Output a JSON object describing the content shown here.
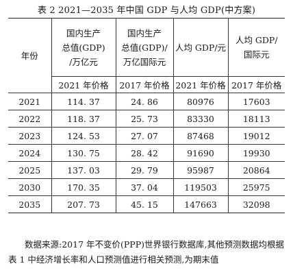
{
  "caption": "表 2   2021—2035 年中国 GDP 与人均 GDP(中方案)",
  "table": {
    "headers": {
      "year": "年份",
      "gdp_cny_line1": "国内生产",
      "gdp_cny_line2": "总值(GDP)",
      "gdp_cny_line3": "/万亿元",
      "gdp_intl_line1": "国内生产",
      "gdp_intl_line2": "总值(GDP)/",
      "gdp_intl_line3": "万亿国际元",
      "pc_cny": "人均 GDP/元",
      "pc_intl_line1": "人均 GDP/",
      "pc_intl_line2": "国际元"
    },
    "subheaders": [
      "2021 年价格",
      "2017 年价格",
      "2021 年价格",
      "2017 年价格"
    ],
    "rows": [
      {
        "year": "2021",
        "gdp_cny": "114. 37",
        "gdp_intl": "24. 86",
        "pc_cny": "80976",
        "pc_intl": "17603"
      },
      {
        "year": "2022",
        "gdp_cny": "118. 37",
        "gdp_intl": "25. 73",
        "pc_cny": "83330",
        "pc_intl": "18113"
      },
      {
        "year": "2023",
        "gdp_cny": "124. 53",
        "gdp_intl": "27. 07",
        "pc_cny": "87468",
        "pc_intl": "19012"
      },
      {
        "year": "2024",
        "gdp_cny": "130. 75",
        "gdp_intl": "28. 42",
        "pc_cny": "91690",
        "pc_intl": "19930"
      },
      {
        "year": "2025",
        "gdp_cny": "137. 03",
        "gdp_intl": "29. 79",
        "pc_cny": "95987",
        "pc_intl": "20864"
      },
      {
        "year": "2030",
        "gdp_cny": "170. 35",
        "gdp_intl": "37. 04",
        "pc_cny": "119503",
        "pc_intl": "25975"
      },
      {
        "year": "2035",
        "gdp_cny": "207. 73",
        "gdp_intl": "45. 15",
        "pc_cny": "147663",
        "pc_intl": "32098"
      }
    ]
  },
  "note": {
    "line1": "数据来源:2017 年不变价(PPP)世界银行数据库,其他预测数",
    "line2": "据均根据表 1 中经济增长率和人口预测值进行相关预测,为期末值"
  }
}
